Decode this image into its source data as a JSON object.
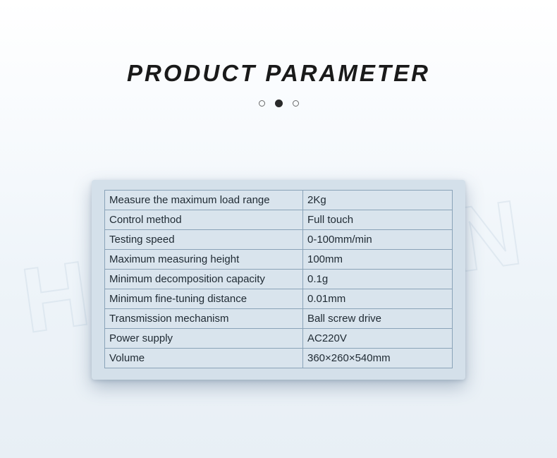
{
  "page": {
    "title": "PRODUCT PARAMETER",
    "title_fontsize": 33,
    "title_color": "#1a1a1a",
    "title_letter_spacing": 3,
    "background_gradient": [
      "#ffffff",
      "#f7fafd",
      "#eef4f9",
      "#e8eff5"
    ]
  },
  "dots": {
    "count": 3,
    "active_index": 1,
    "open_border_color": "#6a6a6a",
    "filled_color": "#2a2a2a"
  },
  "card": {
    "background_color": "#d4e0ea",
    "border_radius": 4,
    "shadow_color": "rgba(60,90,120,0.35)"
  },
  "table": {
    "type": "table",
    "border_color": "#8aa3b8",
    "cell_background": "#d9e4ed",
    "text_color": "#1f2a33",
    "font_size": 15,
    "col1_width_pct": 57,
    "col2_width_pct": 43,
    "rows": [
      {
        "label": "Measure the maximum load range",
        "value": "2Kg"
      },
      {
        "label": "Control method",
        "value": "Full touch"
      },
      {
        "label": "Testing speed",
        "value": "0-100mm/min"
      },
      {
        "label": "Maximum measuring height",
        "value": "100mm"
      },
      {
        "label": "Minimum decomposition capacity",
        "value": "0.1g"
      },
      {
        "label": "Minimum fine-tuning distance",
        "value": "0.01mm"
      },
      {
        "label": "Transmission mechanism",
        "value": "Ball screw drive"
      },
      {
        "label": "Power supply",
        "value": "AC220V"
      },
      {
        "label": "Volume",
        "value": "360×260×540mm"
      }
    ]
  },
  "watermark": {
    "text": "HOUGJIN",
    "color": "rgba(200,215,228,0.35)"
  }
}
